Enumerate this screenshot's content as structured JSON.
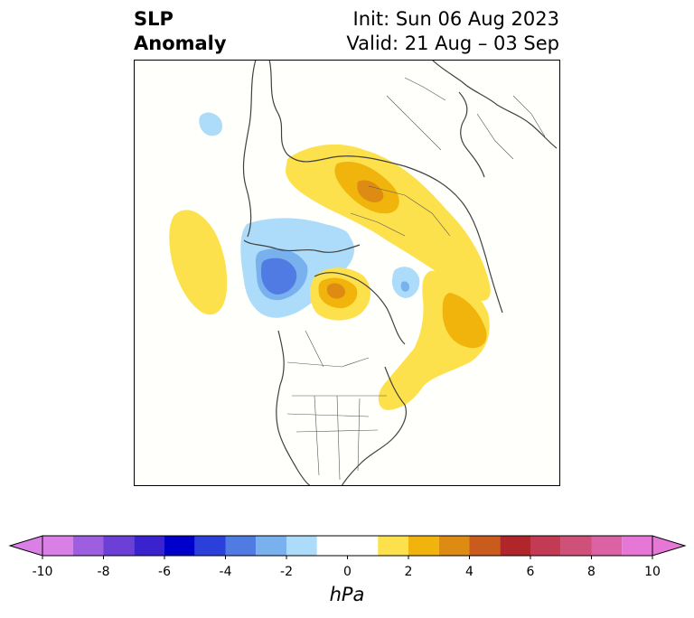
{
  "title": {
    "left_line1": "SLP",
    "left_line2": "Anomaly",
    "right_line1": "Init: Sun 06 Aug 2023",
    "right_line2": "Valid: 21 Aug – 03 Sep"
  },
  "colorbar": {
    "unit": "hPa",
    "tick_labels": [
      "-10",
      "-8",
      "-6",
      "-4",
      "-2",
      "0",
      "2",
      "4",
      "6",
      "8",
      "10"
    ],
    "bins": [
      {
        "lo": -10,
        "hi": -9,
        "color": "#d97fe6"
      },
      {
        "lo": -9,
        "hi": -8,
        "color": "#9d5ee0"
      },
      {
        "lo": -8,
        "hi": -7,
        "color": "#6c3fd6"
      },
      {
        "lo": -7,
        "hi": -6,
        "color": "#3a22cf"
      },
      {
        "lo": -6,
        "hi": -5,
        "color": "#0000cc"
      },
      {
        "lo": -5,
        "hi": -4,
        "color": "#2b3fdb"
      },
      {
        "lo": -4,
        "hi": -3,
        "color": "#4f7be3"
      },
      {
        "lo": -3,
        "hi": -2,
        "color": "#79b1ef"
      },
      {
        "lo": -2,
        "hi": -1,
        "color": "#acdcf9"
      },
      {
        "lo": -1,
        "hi": 1,
        "color": "#ffffff"
      },
      {
        "lo": 1,
        "hi": 2,
        "color": "#fde14c"
      },
      {
        "lo": 2,
        "hi": 3,
        "color": "#f1b40d"
      },
      {
        "lo": 3,
        "hi": 4,
        "color": "#de8b14"
      },
      {
        "lo": 4,
        "hi": 5,
        "color": "#c95b1d"
      },
      {
        "lo": 5,
        "hi": 6,
        "color": "#b0262a"
      },
      {
        "lo": 6,
        "hi": 7,
        "color": "#c23a53"
      },
      {
        "lo": 7,
        "hi": 8,
        "color": "#cf5078"
      },
      {
        "lo": 8,
        "hi": 9,
        "color": "#db62a3"
      },
      {
        "lo": 9,
        "hi": 10,
        "color": "#e677d6"
      }
    ],
    "extend_low_color": "#d97fe6",
    "extend_high_color": "#e677d6"
  },
  "map": {
    "projection": "north-polar-stereographic",
    "background": "#fffffb",
    "coast_color": "#404040"
  }
}
